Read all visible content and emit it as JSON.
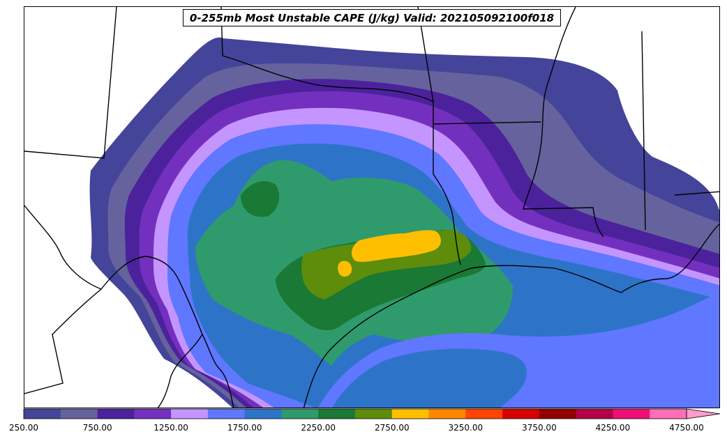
{
  "title": "0-255mb Most Unstable CAPE (J/kg) Valid: 202105092100f018",
  "colorbar": {
    "levels": [
      250,
      500,
      750,
      1000,
      1250,
      1500,
      1750,
      2000,
      2250,
      2500,
      2750,
      3000,
      3250,
      3500,
      3750,
      4000,
      4250,
      4500,
      4750
    ],
    "colors": [
      "#44449a",
      "#65629e",
      "#4b229c",
      "#7330be",
      "#c495ff",
      "#6077ff",
      "#2d74c8",
      "#2f9a6c",
      "#197935",
      "#5e8c0b",
      "#ffbf00",
      "#ff8800",
      "#ff4400",
      "#d60000",
      "#910000",
      "#b30047",
      "#ee0e77",
      "#ff6eb8",
      "#ff9cc9"
    ],
    "tick_labels": [
      "250.00",
      "750.00",
      "1250.00",
      "1750.00",
      "2250.00",
      "2750.00",
      "3250.00",
      "3750.00",
      "4250.00",
      "4750.00"
    ],
    "extend": "max"
  }
}
